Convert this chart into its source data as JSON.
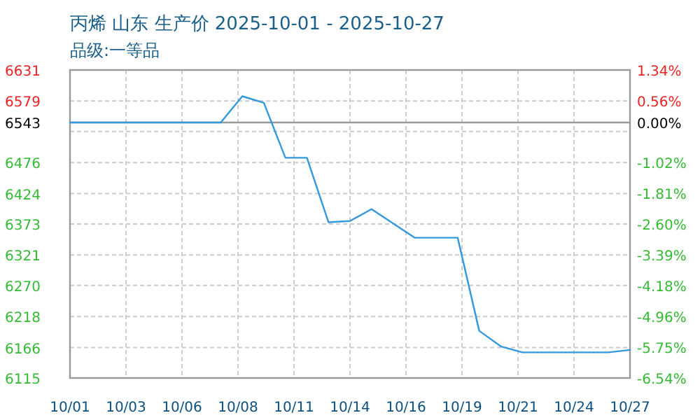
{
  "chart_data": {
    "type": "line",
    "title": "丙烯 山东 生产价 2025-10-01 - 2025-10-27",
    "subtitle": "品级:一等品",
    "x": [
      "2025-10-01",
      "2025-10-08",
      "2025-10-09",
      "2025-10-10",
      "2025-10-11",
      "2025-10-12",
      "2025-10-13",
      "2025-10-14",
      "2025-10-15",
      "2025-10-17",
      "2025-10-19",
      "2025-10-20",
      "2025-10-21",
      "2025-10-22",
      "2025-10-26",
      "2025-10-27"
    ],
    "series": [
      {
        "color": "#3399dd",
        "values": [
          6543,
          6543,
          6587,
          6576,
          6484,
          6484,
          6376,
          6378,
          6398,
          6350,
          6350,
          6194,
          6168,
          6158,
          6158,
          6162
        ]
      }
    ],
    "xlim": [
      "2025-10-01",
      "2025-10-27"
    ],
    "xticks": [
      {
        "value": "2025-10-01",
        "label": "10/01"
      },
      {
        "value": "2025-10-03T14:24",
        "label": "10/03"
      },
      {
        "value": "2025-10-06T04:48",
        "label": "10/06"
      },
      {
        "value": "2025-10-08T19:12",
        "label": "10/08"
      },
      {
        "value": "2025-10-11T09:36",
        "label": "10/11"
      },
      {
        "value": "2025-10-14",
        "label": "10/14"
      },
      {
        "value": "2025-10-16T14:24",
        "label": "10/16"
      },
      {
        "value": "2025-10-19T04:48",
        "label": "10/19"
      },
      {
        "value": "2025-10-21T19:12",
        "label": "10/21"
      },
      {
        "value": "2025-10-24T09:36",
        "label": "10/24"
      },
      {
        "value": "2025-10-27",
        "label": "10/27"
      }
    ],
    "ylim": [
      6115,
      6631
    ],
    "yticks": [
      6115,
      6166,
      6218,
      6270,
      6321,
      6373,
      6424,
      6476,
      {
        "value": 6528,
        "label": null
      },
      6543,
      6579,
      6631
    ],
    "y2lim": [
      -6.54,
      1.34
    ],
    "y2ticks": [
      {
        "value": -6.54,
        "label": "-6.54%"
      },
      {
        "value": -5.75,
        "label": "-5.75%"
      },
      {
        "value": -4.96,
        "label": "-4.96%"
      },
      {
        "value": -4.18,
        "label": "-4.18%"
      },
      {
        "value": -3.39,
        "label": "-3.39%"
      },
      {
        "value": -2.6,
        "label": "-2.60%"
      },
      {
        "value": -1.81,
        "label": "-1.81%"
      },
      {
        "value": -1.02,
        "label": "-1.02%"
      },
      {
        "value": -0.23,
        "label": null
      },
      {
        "value": 0,
        "label": "0.00%"
      },
      {
        "value": 0.56,
        "label": "0.56%"
      },
      {
        "value": 1.34,
        "label": "1.34%"
      }
    ],
    "ref_lines": [
      {
        "axis": "y",
        "value": 6543,
        "color": "#999999"
      }
    ],
    "grid": true,
    "line_style": "solid"
  }
}
